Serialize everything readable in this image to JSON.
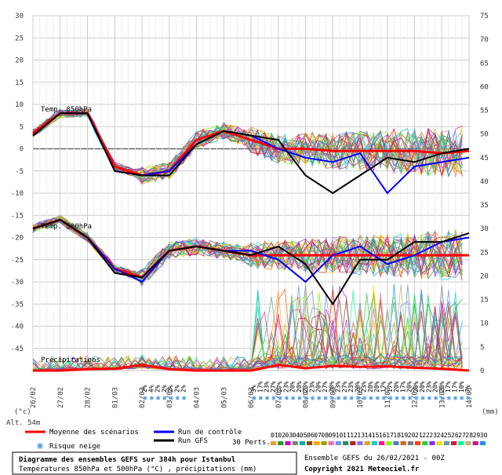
{
  "chart_data": {
    "type": "line",
    "x": [
      "26/02",
      "27/02",
      "28/02",
      "01/03",
      "02/03",
      "03/03",
      "04/03",
      "05/03",
      "06/03",
      "07/03",
      "08/03",
      "09/03",
      "10/03",
      "11/03",
      "12/03",
      "13/03",
      "14/03"
    ],
    "ylim_left": [
      -50,
      30
    ],
    "ylim_right": [
      0,
      75
    ],
    "left_ticks": [
      30,
      25,
      20,
      15,
      10,
      5,
      0,
      -5,
      -10,
      -15,
      -20,
      -25,
      -30,
      -35,
      -40,
      -45
    ],
    "right_ticks": [
      75,
      70,
      65,
      60,
      55,
      50,
      45,
      40,
      35,
      30,
      25,
      20,
      15,
      10,
      5,
      0
    ],
    "left_unit": "(°c)",
    "right_unit": "(mm)",
    "altitude": "Alt. 54m",
    "labels": {
      "t850": "Temp. 850hPa",
      "t500": "Temp. 500hPa",
      "precip": "Précipitations"
    },
    "snow_legend": "Risque neige",
    "series": [
      {
        "name": "Moyenne des scénarios",
        "color": "#ff0000",
        "role": "t850",
        "values": [
          3.5,
          8,
          8,
          -4,
          -6,
          -5,
          2,
          4,
          2,
          0,
          0,
          -0.5,
          -0.5,
          -0.5,
          -0.5,
          -1,
          -0.5
        ]
      },
      {
        "name": "Run de contrôle",
        "color": "#0000ff",
        "role": "t850",
        "values": [
          3,
          8,
          8,
          -5,
          -6,
          -5,
          1,
          4,
          3,
          0,
          -2,
          -3,
          -1,
          -10,
          -4,
          -3,
          -2
        ]
      },
      {
        "name": "Run GFS",
        "color": "#000000",
        "role": "t850",
        "values": [
          3,
          8,
          8,
          -5,
          -6,
          -6,
          1,
          4,
          3,
          2,
          -6,
          -10,
          -6,
          -2,
          -3,
          -1,
          0
        ]
      },
      {
        "name": "Moyenne des scénarios",
        "color": "#ff0000",
        "role": "t500",
        "values": [
          -18,
          -16,
          -20,
          -27,
          -29,
          -23,
          -22,
          -23,
          -24,
          -24,
          -24,
          -24,
          -24,
          -24,
          -24,
          -24,
          -24
        ]
      },
      {
        "name": "Run de contrôle",
        "color": "#0000ff",
        "role": "t500",
        "values": [
          -18,
          -16,
          -20,
          -27,
          -30,
          -23,
          -22,
          -23,
          -23,
          -25,
          -30,
          -24,
          -22,
          -26,
          -24,
          -21,
          -20
        ]
      },
      {
        "name": "Run GFS",
        "color": "#000000",
        "role": "t500",
        "values": [
          -18,
          -16,
          -20,
          -28,
          -29,
          -23,
          -22,
          -23,
          -24,
          -22,
          -26,
          -35,
          -25,
          -25,
          -21,
          -21,
          -19
        ]
      },
      {
        "name": "Moyenne des scénarios",
        "color": "#ff0000",
        "role": "precip",
        "values": [
          0,
          0,
          0.3,
          0.4,
          1.2,
          0.3,
          0,
          0,
          0,
          1.2,
          0.5,
          1,
          0.8,
          0.9,
          0.6,
          0.4,
          0
        ]
      }
    ],
    "legend": {
      "mean": "Moyenne des scénarios",
      "control": "Run de contrôle",
      "gfs": "Run GFS",
      "perts": "30 Perts."
    },
    "pert_numbers": [
      "01",
      "02",
      "03",
      "04",
      "05",
      "06",
      "07",
      "08",
      "09",
      "10",
      "11",
      "12",
      "13",
      "14",
      "15",
      "16",
      "17",
      "18",
      "19",
      "20",
      "21",
      "22",
      "23",
      "24",
      "25",
      "26",
      "27",
      "28",
      "29",
      "30"
    ],
    "pert_colors": [
      "#e8a030",
      "#20a020",
      "#cc00cc",
      "#808080",
      "#00aaaa",
      "#8b4513",
      "#ffa500",
      "#a0a000",
      "#ff69b4",
      "#6495ed",
      "#2e8b57",
      "#b22222",
      "#9370db",
      "#daa520",
      "#00ced1",
      "#ff1493",
      "#7cfc00",
      "#4682b4",
      "#d2691e",
      "#708090",
      "#ff4500",
      "#32cd32",
      "#8a2be2",
      "#ffd700",
      "#5f9ea0",
      "#dc143c",
      "#00fa9a",
      "#bdb76b",
      "#c71585",
      "#1e90ff"
    ],
    "snow_markers": [
      {
        "x": "02/03",
        "pct": [
          "2%",
          "4%",
          "2%",
          "2%",
          "2%",
          "2%",
          "2%"
        ]
      },
      {
        "x": "06/03",
        "pct": [
          "3%",
          "17%",
          "23%",
          "27%",
          "27%",
          "23%",
          "20%",
          "20%",
          "23%",
          "23%",
          "20%",
          "27%",
          "20%",
          "23%",
          "27%",
          "23%",
          "20%",
          "23%",
          "20%",
          "20%",
          "17%",
          "17%",
          "20%",
          "17%",
          "20%",
          "20%",
          "20%",
          "23%",
          "20%",
          "20%",
          "17%",
          "17%",
          "10%",
          "7%"
        ]
      }
    ]
  },
  "footer": {
    "title": "Diagramme des ensembles GEFS sur 384h pour Istanbul",
    "subtitle": "Températures 850hPa et 500hPa (°C) , précipitations (mm)",
    "run": "Ensemble GEFS du 26/02/2021 - 00Z",
    "copyright": "Copyright 2021 Meteociel.fr"
  }
}
